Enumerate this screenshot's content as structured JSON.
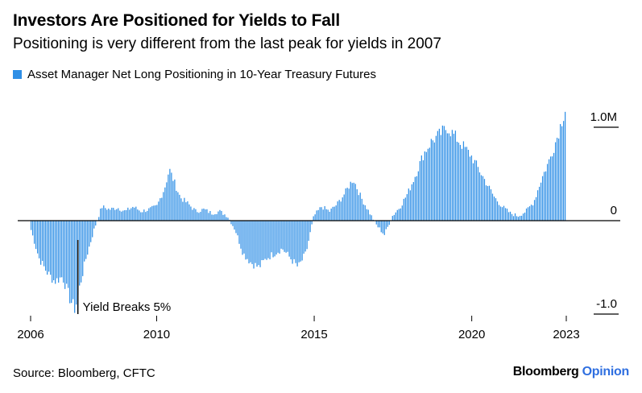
{
  "chart_data": {
    "type": "bar",
    "title": "Investors Are Positioned for Yields to Fall",
    "subtitle": "Positioning is very different from the last peak for yields in 2007",
    "series": [
      {
        "name": "Asset Manager Net Long Positioning in 10-Year Treasury Futures",
        "color": "#2f8fe6",
        "points": [
          [
            2006.0,
            -0.1
          ],
          [
            2006.25,
            -0.4
          ],
          [
            2006.5,
            -0.55
          ],
          [
            2006.75,
            -0.65
          ],
          [
            2007.0,
            -0.6
          ],
          [
            2007.25,
            -0.85
          ],
          [
            2007.4,
            -0.95
          ],
          [
            2007.55,
            -0.7
          ],
          [
            2007.75,
            -0.4
          ],
          [
            2008.0,
            -0.1
          ],
          [
            2008.25,
            0.15
          ],
          [
            2008.5,
            0.12
          ],
          [
            2008.75,
            0.14
          ],
          [
            2009.0,
            0.1
          ],
          [
            2009.25,
            0.15
          ],
          [
            2009.5,
            0.1
          ],
          [
            2009.75,
            0.12
          ],
          [
            2010.0,
            0.15
          ],
          [
            2010.25,
            0.35
          ],
          [
            2010.4,
            0.55
          ],
          [
            2010.55,
            0.42
          ],
          [
            2010.75,
            0.25
          ],
          [
            2011.0,
            0.18
          ],
          [
            2011.25,
            0.1
          ],
          [
            2011.5,
            0.12
          ],
          [
            2011.75,
            0.08
          ],
          [
            2012.0,
            0.1
          ],
          [
            2012.25,
            0.05
          ],
          [
            2012.5,
            -0.1
          ],
          [
            2012.75,
            -0.35
          ],
          [
            2013.0,
            -0.45
          ],
          [
            2013.25,
            -0.5
          ],
          [
            2013.5,
            -0.4
          ],
          [
            2013.75,
            -0.35
          ],
          [
            2014.0,
            -0.3
          ],
          [
            2014.25,
            -0.4
          ],
          [
            2014.5,
            -0.5
          ],
          [
            2014.75,
            -0.35
          ],
          [
            2015.0,
            0.05
          ],
          [
            2015.25,
            0.15
          ],
          [
            2015.5,
            0.1
          ],
          [
            2015.75,
            0.18
          ],
          [
            2016.0,
            0.3
          ],
          [
            2016.25,
            0.45
          ],
          [
            2016.5,
            0.25
          ],
          [
            2016.75,
            0.1
          ],
          [
            2017.0,
            -0.05
          ],
          [
            2017.25,
            -0.15
          ],
          [
            2017.5,
            0.05
          ],
          [
            2017.75,
            0.15
          ],
          [
            2018.0,
            0.3
          ],
          [
            2018.25,
            0.5
          ],
          [
            2018.5,
            0.72
          ],
          [
            2018.75,
            0.85
          ],
          [
            2019.0,
            0.92
          ],
          [
            2019.25,
            1.0
          ],
          [
            2019.5,
            0.9
          ],
          [
            2019.75,
            0.8
          ],
          [
            2020.0,
            0.7
          ],
          [
            2020.25,
            0.55
          ],
          [
            2020.5,
            0.4
          ],
          [
            2020.75,
            0.25
          ],
          [
            2021.0,
            0.15
          ],
          [
            2021.25,
            0.08
          ],
          [
            2021.5,
            0.05
          ],
          [
            2021.75,
            0.1
          ],
          [
            2022.0,
            0.2
          ],
          [
            2022.25,
            0.45
          ],
          [
            2022.5,
            0.65
          ],
          [
            2022.75,
            0.9
          ],
          [
            2023.0,
            1.2
          ]
        ]
      }
    ],
    "x_ticks": [
      "2006",
      "2010",
      "2015",
      "2020",
      "2023"
    ],
    "x_tick_values": [
      2006,
      2010,
      2015,
      2020,
      2023
    ],
    "y_ticks": [
      "1.0M",
      "0",
      "-1.0"
    ],
    "y_tick_values": [
      1.0,
      0,
      -1.0
    ],
    "xlim": [
      2006,
      2023
    ],
    "ylim": [
      -1.0,
      1.2
    ],
    "annotation": {
      "text": "Yield Breaks 5%",
      "x": 2007.5,
      "y": -1.0
    },
    "grid": false,
    "legend_placement": "top-left"
  },
  "footer": {
    "source": "Source: Bloomberg, CFTC",
    "brand_main": "Bloomberg",
    "brand_accent": "Opinion"
  }
}
